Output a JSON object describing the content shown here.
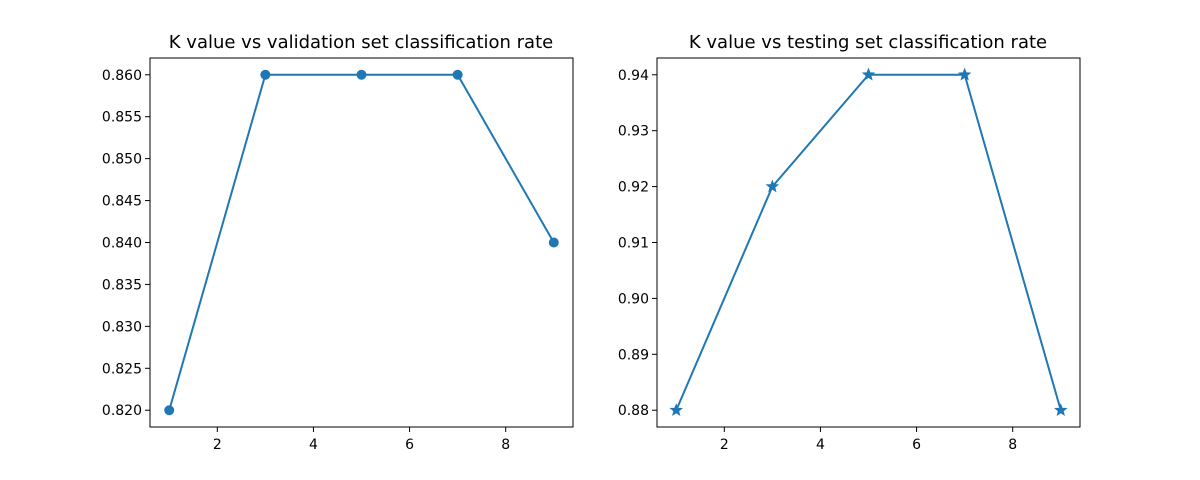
{
  "chart_data": [
    {
      "type": "line",
      "title": "K value vs validation set classification rate",
      "xlabel": "",
      "ylabel": "",
      "x": [
        1,
        3,
        5,
        7,
        9
      ],
      "series": [
        {
          "values": [
            0.82,
            0.86,
            0.86,
            0.86,
            0.84
          ],
          "marker": "circle",
          "color": "#1f77b4"
        }
      ],
      "xlim": [
        0.6,
        9.4
      ],
      "ylim": [
        0.818,
        0.862
      ],
      "xticks": [
        2,
        4,
        6,
        8
      ],
      "xtick_labels": [
        "2",
        "4",
        "6",
        "8"
      ],
      "yticks": [
        0.82,
        0.825,
        0.83,
        0.835,
        0.84,
        0.845,
        0.85,
        0.855,
        0.86
      ],
      "ytick_labels": [
        "0.820",
        "0.825",
        "0.830",
        "0.835",
        "0.840",
        "0.845",
        "0.850",
        "0.855",
        "0.860"
      ],
      "grid": false,
      "legend": "none"
    },
    {
      "type": "line",
      "title": "K value vs testing set classification rate",
      "xlabel": "",
      "ylabel": "",
      "x": [
        1,
        3,
        5,
        7,
        9
      ],
      "series": [
        {
          "values": [
            0.88,
            0.92,
            0.94,
            0.94,
            0.88
          ],
          "marker": "star",
          "color": "#1f77b4"
        }
      ],
      "xlim": [
        0.6,
        9.4
      ],
      "ylim": [
        0.877,
        0.943
      ],
      "xticks": [
        2,
        4,
        6,
        8
      ],
      "xtick_labels": [
        "2",
        "4",
        "6",
        "8"
      ],
      "yticks": [
        0.88,
        0.89,
        0.9,
        0.91,
        0.92,
        0.93,
        0.94
      ],
      "ytick_labels": [
        "0.88",
        "0.89",
        "0.90",
        "0.91",
        "0.92",
        "0.93",
        "0.94"
      ],
      "grid": false,
      "legend": "none"
    }
  ]
}
